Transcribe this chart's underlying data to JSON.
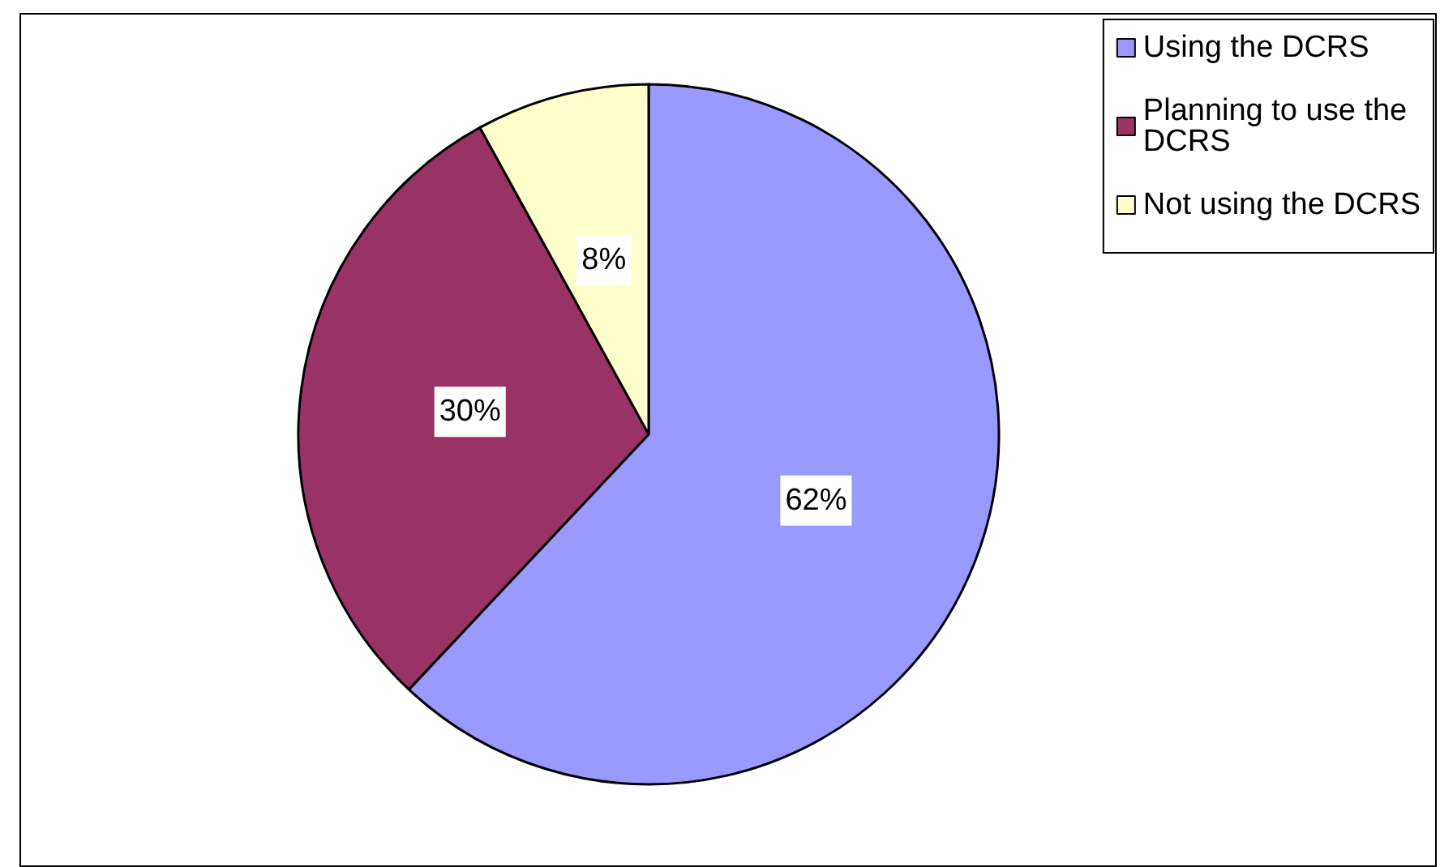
{
  "chart_data": {
    "type": "pie",
    "categories": [
      "Using the DCRS",
      "Planning to use the DCRS",
      "Not using the DCRS"
    ],
    "values": [
      62,
      30,
      8
    ],
    "colors": [
      "#9999ff",
      "#993366",
      "#ffffcc"
    ],
    "value_labels": [
      "62%",
      "30%",
      "8%"
    ],
    "legend": "top right"
  }
}
